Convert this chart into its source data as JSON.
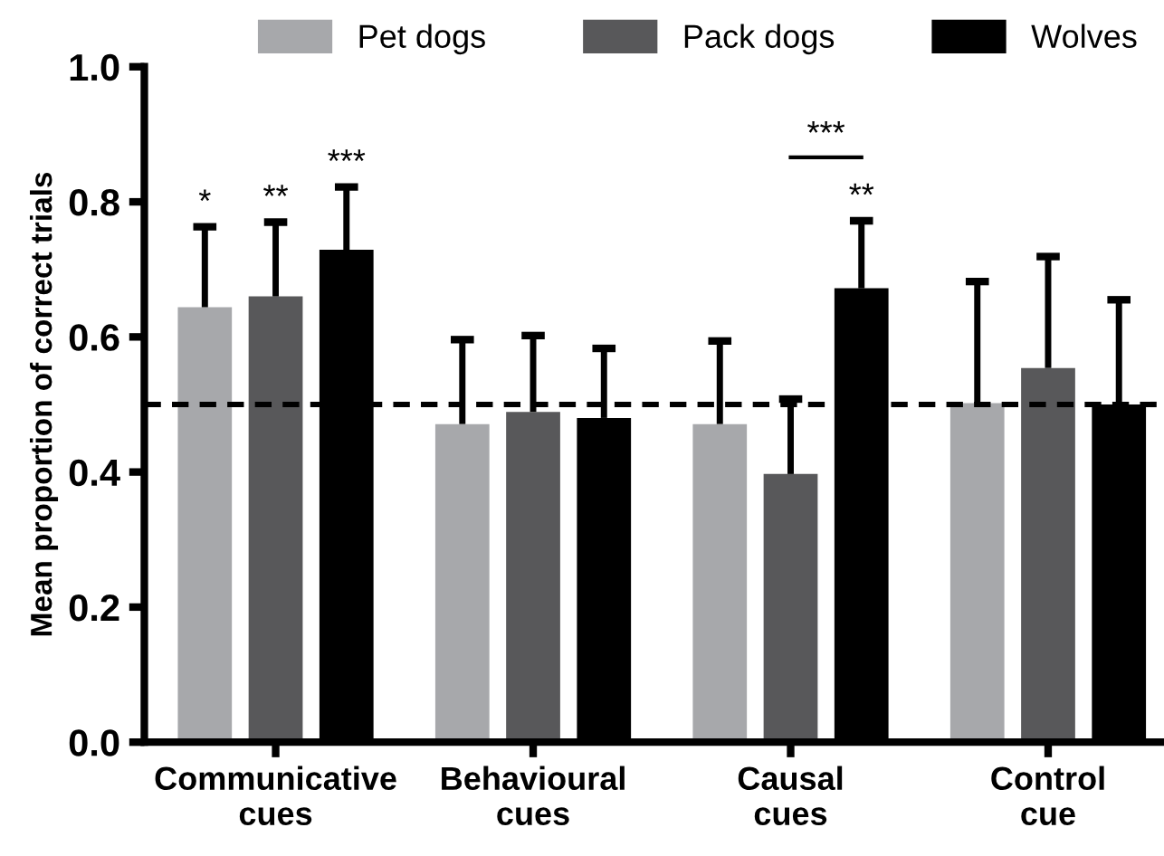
{
  "chart_data": {
    "type": "bar",
    "ylabel": "Mean proportion of correct trials",
    "categories": [
      "Communicative\ncues",
      "Behavioural\ncues",
      "Causal\ncues",
      "Control\ncue"
    ],
    "series": [
      {
        "name": "Pet dogs",
        "color": "#a7a8ab",
        "values": [
          0.644,
          0.471,
          0.471,
          0.502
        ],
        "errors": [
          [
            0.644,
            0.763
          ],
          [
            0.471,
            0.596
          ],
          [
            0.471,
            0.594
          ],
          [
            0.502,
            0.682
          ]
        ]
      },
      {
        "name": "Pack dogs",
        "color": "#58585a",
        "values": [
          0.66,
          0.489,
          0.397,
          0.554
        ],
        "errors": [
          [
            0.66,
            0.77
          ],
          [
            0.489,
            0.602
          ],
          [
            0.397,
            0.508
          ],
          [
            0.554,
            0.719
          ]
        ]
      },
      {
        "name": "Wolves",
        "color": "#000000",
        "values": [
          0.729,
          0.48,
          0.672,
          0.5
        ],
        "errors": [
          [
            0.729,
            0.822
          ],
          [
            0.48,
            0.583
          ],
          [
            0.672,
            0.772
          ],
          [
            0.5,
            0.655
          ]
        ]
      }
    ],
    "ylim": [
      0,
      1
    ],
    "yticks": [
      {
        "value": 0,
        "label": "0.0"
      },
      {
        "value": 0.2,
        "label": "0.2"
      },
      {
        "value": 0.4,
        "label": "0.4"
      },
      {
        "value": 0.6,
        "label": "0.6"
      },
      {
        "value": 0.8,
        "label": "0.8"
      },
      {
        "value": 1,
        "label": "1.0"
      }
    ],
    "ref_lines": [
      {
        "axis": "y",
        "value": 0.5,
        "line_style": "dashed",
        "color": "#000000"
      }
    ],
    "annotations": [
      "*",
      "**",
      "***",
      "**",
      "***"
    ],
    "legend": "top",
    "grid": false
  }
}
